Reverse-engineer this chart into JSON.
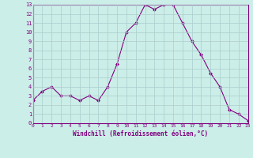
{
  "x": [
    0,
    1,
    2,
    3,
    4,
    5,
    6,
    7,
    8,
    9,
    10,
    11,
    12,
    13,
    14,
    15,
    16,
    17,
    18,
    19,
    20,
    21,
    22,
    23
  ],
  "y": [
    2.5,
    3.5,
    4.0,
    3.0,
    3.0,
    2.5,
    3.0,
    2.5,
    4.0,
    6.5,
    10.0,
    11.0,
    13.0,
    12.5,
    13.0,
    13.0,
    11.0,
    9.0,
    7.5,
    5.5,
    4.0,
    1.5,
    1.0,
    0.3
  ],
  "line_color": "#800080",
  "marker": "D",
  "marker_size": 2,
  "bg_color": "#cceee8",
  "grid_color": "#aacccc",
  "xlabel": "Windchill (Refroidissement éolien,°C)",
  "ylim": [
    0,
    13
  ],
  "xlim": [
    0,
    23
  ],
  "yticks": [
    0,
    1,
    2,
    3,
    4,
    5,
    6,
    7,
    8,
    9,
    10,
    11,
    12,
    13
  ],
  "xticks": [
    0,
    1,
    2,
    3,
    4,
    5,
    6,
    7,
    8,
    9,
    10,
    11,
    12,
    13,
    14,
    15,
    16,
    17,
    18,
    19,
    20,
    21,
    22,
    23
  ],
  "tick_color": "#800080",
  "axis_label_color": "#800080",
  "spine_color": "#800080",
  "font_family": "monospace"
}
